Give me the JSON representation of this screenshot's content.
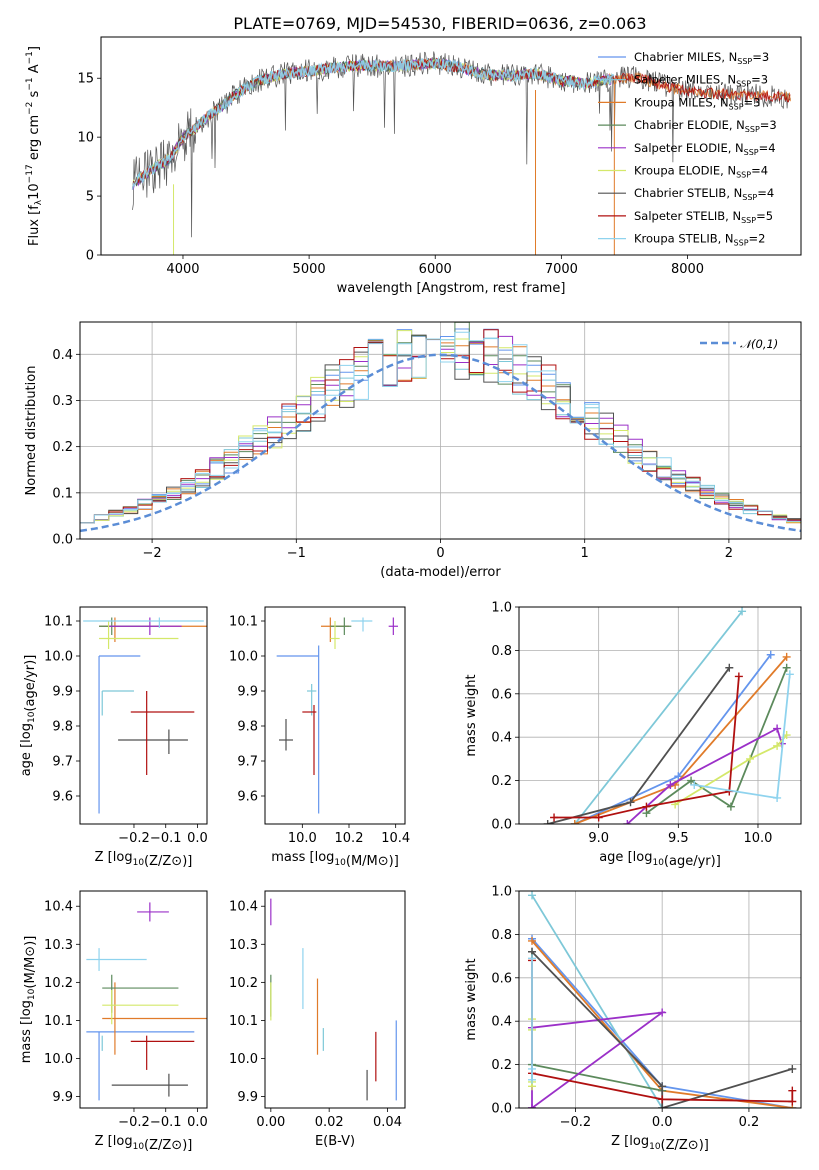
{
  "figure": {
    "title": "PLATE=0769, MJD=54530, FIBERID=0636, z=0.063"
  },
  "legend": {
    "entries": [
      {
        "label": "Chabrier MILES, N",
        "sub": "SSP",
        "tail": "=3",
        "color": "#6495ed"
      },
      {
        "label": "Salpeter MILES, N",
        "sub": "SSP",
        "tail": "=3",
        "color": "#7ec8d8"
      },
      {
        "label": "Kroupa MILES, N",
        "sub": "SSP",
        "tail": "=3",
        "color": "#e07b2a"
      },
      {
        "label": "Chabrier ELODIE, N",
        "sub": "SSP",
        "tail": "=3",
        "color": "#5c8a5c"
      },
      {
        "label": "Salpeter ELODIE, N",
        "sub": "SSP",
        "tail": "=4",
        "color": "#9b30c8"
      },
      {
        "label": "Kroupa ELODIE, N",
        "sub": "SSP",
        "tail": "=4",
        "color": "#d4e86a"
      },
      {
        "label": "Chabrier STELIB, N",
        "sub": "SSP",
        "tail": "=4",
        "color": "#505050"
      },
      {
        "label": "Salpeter STELIB, N",
        "sub": "SSP",
        "tail": "=5",
        "color": "#b01010"
      },
      {
        "label": "Kroupa STELIB, N",
        "sub": "SSP",
        "tail": "=2",
        "color": "#8fd3ee"
      }
    ]
  },
  "chart_data": [
    {
      "type": "line",
      "id": "spectrum",
      "xlabel": "wavelength [Angstrom, rest frame]",
      "ylabel": "Flux [f",
      "ylabel_parts": [
        "Flux [f",
        "λ",
        "10",
        "−17",
        " erg cm",
        "−2",
        " s",
        "−1",
        " A",
        "−1",
        "]"
      ],
      "xlim": [
        3350,
        8900
      ],
      "ylim": [
        0,
        18.5
      ],
      "xticks": [
        4000,
        5000,
        6000,
        7000,
        8000
      ],
      "yticks": [
        0,
        5,
        10,
        15
      ],
      "continuum": {
        "x": [
          3600,
          3700,
          3800,
          3900,
          4000,
          4100,
          4200,
          4300,
          4400,
          4500,
          4600,
          4800,
          5000,
          5200,
          5400,
          5600,
          5800,
          6000,
          6200,
          6400,
          6600,
          6800,
          7000,
          7200,
          7400,
          7600,
          7800,
          8000,
          8200,
          8400,
          8600,
          8800
        ],
        "y": [
          6.0,
          6.8,
          7.6,
          8.2,
          10.0,
          10.8,
          11.8,
          12.5,
          13.5,
          14.2,
          14.8,
          15.4,
          15.6,
          15.9,
          16.1,
          16.0,
          16.1,
          16.3,
          15.9,
          15.3,
          15.2,
          15.4,
          14.8,
          14.6,
          14.9,
          15.1,
          14.4,
          13.9,
          13.7,
          13.6,
          13.5,
          13.4
        ]
      },
      "observed_range": [
        3600,
        7420
      ]
    },
    {
      "type": "bar",
      "id": "residuals",
      "xlabel": "(data-model)/error",
      "ylabel": "Normed distribution",
      "xlim": [
        -2.5,
        2.5
      ],
      "ylim": [
        0,
        0.47
      ],
      "xticks": [
        -2,
        -1,
        0,
        1,
        2
      ],
      "yticks": [
        0.0,
        0.1,
        0.2,
        0.3,
        0.4
      ],
      "grid": true,
      "legend_label": "𝒩(0,1)",
      "bin_width": 0.1,
      "histogram_series": 9
    },
    {
      "type": "scatter",
      "id": "age_vs_Z",
      "xlabel": "Z [log10(Z/Z⊙)]",
      "ylabel": "age  [log10(age/yr)]",
      "xlim": [
        -0.37,
        0.03
      ],
      "ylim": [
        9.52,
        10.14
      ],
      "xticks": [
        -0.2,
        -0.1,
        0.0
      ],
      "yticks": [
        9.6,
        9.7,
        9.8,
        9.9,
        10.0,
        10.1
      ],
      "series": [
        {
          "x": -0.31,
          "xlo": -0.31,
          "xhi": -0.18,
          "y": 10.0,
          "ylo": 9.55,
          "yhi": 10.0
        },
        {
          "x": -0.3,
          "xlo": -0.3,
          "xhi": -0.2,
          "y": 9.9,
          "ylo": 9.83,
          "yhi": 9.9
        },
        {
          "x": -0.26,
          "xlo": -0.31,
          "xhi": 0.03,
          "y": 10.085,
          "ylo": 10.04,
          "yhi": 10.11
        },
        {
          "x": -0.27,
          "xlo": -0.31,
          "xhi": -0.12,
          "y": 10.085,
          "ylo": 10.06,
          "yhi": 10.11
        },
        {
          "x": -0.15,
          "xlo": -0.28,
          "xhi": -0.05,
          "y": 10.085,
          "ylo": 10.06,
          "yhi": 10.11
        },
        {
          "x": -0.28,
          "xlo": -0.31,
          "xhi": -0.06,
          "y": 10.05,
          "ylo": 10.02,
          "yhi": 10.1
        },
        {
          "x": -0.09,
          "xlo": -0.25,
          "xhi": -0.03,
          "y": 9.76,
          "ylo": 9.72,
          "yhi": 9.79
        },
        {
          "x": -0.16,
          "xlo": -0.21,
          "xhi": -0.01,
          "y": 9.84,
          "ylo": 9.66,
          "yhi": 9.9
        },
        {
          "x": -0.12,
          "xlo": -0.36,
          "xhi": 0.02,
          "y": 10.1,
          "ylo": 10.08,
          "yhi": 10.11
        }
      ]
    },
    {
      "type": "scatter",
      "id": "age_vs_mass",
      "xlabel": "mass [log10(M/M⊙)]",
      "ylabel": "",
      "xlim": [
        9.84,
        10.44
      ],
      "ylim": [
        9.52,
        10.14
      ],
      "xticks": [
        10.0,
        10.2,
        10.4
      ],
      "yticks": [
        9.6,
        9.7,
        9.8,
        9.9,
        10.0,
        10.1
      ],
      "series": [
        {
          "x": 10.07,
          "xlo": 9.89,
          "xhi": 10.07,
          "y": 10.0,
          "ylo": 9.55,
          "yhi": 10.03
        },
        {
          "x": 10.04,
          "xlo": 10.02,
          "xhi": 10.06,
          "y": 9.9,
          "ylo": 9.83,
          "yhi": 9.92
        },
        {
          "x": 10.12,
          "xlo": 10.08,
          "xhi": 10.2,
          "y": 10.085,
          "ylo": 10.04,
          "yhi": 10.11
        },
        {
          "x": 10.18,
          "xlo": 10.12,
          "xhi": 10.21,
          "y": 10.085,
          "ylo": 10.06,
          "yhi": 10.11
        },
        {
          "x": 10.39,
          "xlo": 10.37,
          "xhi": 10.41,
          "y": 10.085,
          "ylo": 10.06,
          "yhi": 10.11
        },
        {
          "x": 10.14,
          "xlo": 10.12,
          "xhi": 10.16,
          "y": 10.05,
          "ylo": 10.02,
          "yhi": 10.1
        },
        {
          "x": 9.93,
          "xlo": 9.9,
          "xhi": 9.96,
          "y": 9.76,
          "ylo": 9.73,
          "yhi": 9.82
        },
        {
          "x": 10.05,
          "xlo": 10.0,
          "xhi": 10.06,
          "y": 9.84,
          "ylo": 9.66,
          "yhi": 9.86
        },
        {
          "x": 10.26,
          "xlo": 10.21,
          "xhi": 10.3,
          "y": 10.1,
          "ylo": 10.07,
          "yhi": 10.11
        }
      ]
    },
    {
      "type": "line",
      "id": "weight_vs_age",
      "xlabel": "age  [log10(age/yr)]",
      "ylabel": "mass weight",
      "xlim": [
        8.5,
        10.27
      ],
      "ylim": [
        0,
        1.0
      ],
      "xticks": [
        9.0,
        9.5,
        10.0
      ],
      "yticks": [
        0.0,
        0.2,
        0.4,
        0.6,
        0.8,
        1.0
      ],
      "grid": true,
      "series": [
        {
          "x": [
            8.85,
            9.5,
            10.08
          ],
          "y": [
            0.0,
            0.22,
            0.78
          ]
        },
        {
          "x": [
            8.85,
            9.9
          ],
          "y": [
            0.0,
            0.98
          ]
        },
        {
          "x": [
            8.85,
            9.48,
            10.18
          ],
          "y": [
            0.0,
            0.18,
            0.77
          ]
        },
        {
          "x": [
            9.3,
            9.58,
            9.83,
            10.18
          ],
          "y": [
            0.05,
            0.2,
            0.08,
            0.72
          ]
        },
        {
          "x": [
            9.18,
            9.45,
            10.12,
            10.15
          ],
          "y": [
            0.0,
            0.18,
            0.44,
            0.37
          ]
        },
        {
          "x": [
            9.48,
            9.95,
            10.12,
            10.18
          ],
          "y": [
            0.09,
            0.3,
            0.36,
            0.41
          ]
        },
        {
          "x": [
            8.68,
            9.2,
            9.82
          ],
          "y": [
            0.0,
            0.1,
            0.72
          ]
        },
        {
          "x": [
            8.72,
            9.0,
            9.3,
            9.82,
            9.88
          ],
          "y": [
            0.03,
            0.03,
            0.08,
            0.15,
            0.68
          ]
        },
        {
          "x": [
            9.6,
            10.12,
            10.2
          ],
          "y": [
            0.18,
            0.12,
            0.69
          ]
        }
      ]
    },
    {
      "type": "scatter",
      "id": "mass_vs_Z",
      "xlabel": "Z [log10(Z/Z⊙)]",
      "ylabel": "mass [log10(M/M⊙)]",
      "xlim": [
        -0.37,
        0.03
      ],
      "ylim": [
        9.87,
        10.44
      ],
      "xticks": [
        -0.2,
        -0.1,
        0.0
      ],
      "yticks": [
        9.9,
        10.0,
        10.1,
        10.2,
        10.3,
        10.4
      ],
      "series": [
        {
          "x": -0.31,
          "xlo": -0.35,
          "xhi": -0.01,
          "y": 10.07,
          "ylo": 9.89,
          "yhi": 10.07
        },
        {
          "x": -0.3,
          "xlo": -0.3,
          "xhi": -0.3,
          "y": 10.04,
          "ylo": 10.02,
          "yhi": 10.06
        },
        {
          "x": -0.26,
          "xlo": -0.3,
          "xhi": 0.03,
          "y": 10.105,
          "ylo": 10.01,
          "yhi": 10.2
        },
        {
          "x": -0.27,
          "xlo": -0.3,
          "xhi": -0.06,
          "y": 10.185,
          "ylo": 10.12,
          "yhi": 10.22
        },
        {
          "x": -0.15,
          "xlo": -0.19,
          "xhi": -0.09,
          "y": 10.385,
          "ylo": 10.36,
          "yhi": 10.41
        },
        {
          "x": -0.27,
          "xlo": -0.3,
          "xhi": -0.06,
          "y": 10.14,
          "ylo": 10.09,
          "yhi": 10.18
        },
        {
          "x": -0.09,
          "xlo": -0.27,
          "xhi": -0.03,
          "y": 9.93,
          "ylo": 9.9,
          "yhi": 9.96
        },
        {
          "x": -0.16,
          "xlo": -0.21,
          "xhi": -0.01,
          "y": 10.045,
          "ylo": 9.97,
          "yhi": 10.06
        },
        {
          "x": -0.31,
          "xlo": -0.35,
          "xhi": -0.16,
          "y": 10.26,
          "ylo": 10.23,
          "yhi": 10.29
        }
      ]
    },
    {
      "type": "scatter",
      "id": "mass_vs_ebv",
      "xlabel": "E(B-V)",
      "ylabel": "",
      "xlim": [
        -0.002,
        0.046
      ],
      "ylim": [
        9.87,
        10.44
      ],
      "xticks": [
        0.0,
        0.02,
        0.04
      ],
      "yticks": [
        9.9,
        10.0,
        10.1,
        10.2,
        10.3,
        10.4
      ],
      "series": [
        {
          "x": 0.043,
          "y": 10.0,
          "ylo": 9.89,
          "yhi": 10.1
        },
        {
          "x": 0.018,
          "y": 10.04,
          "ylo": 10.02,
          "yhi": 10.08
        },
        {
          "x": 0.016,
          "y": 10.105,
          "ylo": 10.01,
          "yhi": 10.21
        },
        {
          "x": 0.0,
          "y": 10.185,
          "ylo": 10.11,
          "yhi": 10.22
        },
        {
          "x": 0.0,
          "y": 10.385,
          "ylo": 10.35,
          "yhi": 10.42
        },
        {
          "x": 0.0,
          "y": 10.14,
          "ylo": 10.1,
          "yhi": 10.2
        },
        {
          "x": 0.033,
          "y": 9.93,
          "ylo": 9.89,
          "yhi": 9.97
        },
        {
          "x": 0.036,
          "y": 10.02,
          "ylo": 9.94,
          "yhi": 10.07
        },
        {
          "x": 0.011,
          "y": 10.24,
          "ylo": 10.13,
          "yhi": 10.29
        }
      ]
    },
    {
      "type": "line",
      "id": "weight_vs_Z",
      "xlabel": "Z [log10(Z/Z⊙)]",
      "ylabel": "mass weight",
      "xlim": [
        -0.33,
        0.32
      ],
      "ylim": [
        0,
        1.0
      ],
      "xticks": [
        -0.2,
        0.0,
        0.2
      ],
      "yticks": [
        0.0,
        0.2,
        0.4,
        0.6,
        0.8,
        1.0
      ],
      "grid": true,
      "series": [
        {
          "x": [
            -0.3,
            0.0,
            0.3
          ],
          "y": [
            0.78,
            0.1,
            0.0
          ]
        },
        {
          "x": [
            -0.3,
            0.0,
            0.3
          ],
          "y": [
            0.98,
            0.0,
            0.0
          ]
        },
        {
          "x": [
            -0.3,
            0.0,
            0.3
          ],
          "y": [
            0.77,
            0.08,
            0.0
          ]
        },
        {
          "x": [
            -0.3,
            -0.3,
            0.0
          ],
          "y": [
            0.72,
            0.2,
            0.08
          ]
        },
        {
          "x": [
            -0.3,
            -0.3,
            0.0,
            -0.3
          ],
          "y": [
            0.0,
            0.37,
            0.44,
            0.0
          ]
        },
        {
          "x": [
            -0.3,
            -0.3,
            -0.3,
            -0.3
          ],
          "y": [
            0.41,
            0.36,
            0.12,
            0.1
          ]
        },
        {
          "x": [
            -0.3,
            0.0,
            0.0,
            0.3
          ],
          "y": [
            0.72,
            0.1,
            0.0,
            0.18
          ]
        },
        {
          "x": [
            -0.3,
            -0.3,
            0.0,
            0.3,
            0.3
          ],
          "y": [
            0.68,
            0.16,
            0.04,
            0.03,
            0.08
          ]
        },
        {
          "x": [
            -0.3,
            -0.3,
            -0.3
          ],
          "y": [
            0.69,
            0.18,
            0.13
          ]
        }
      ]
    }
  ]
}
